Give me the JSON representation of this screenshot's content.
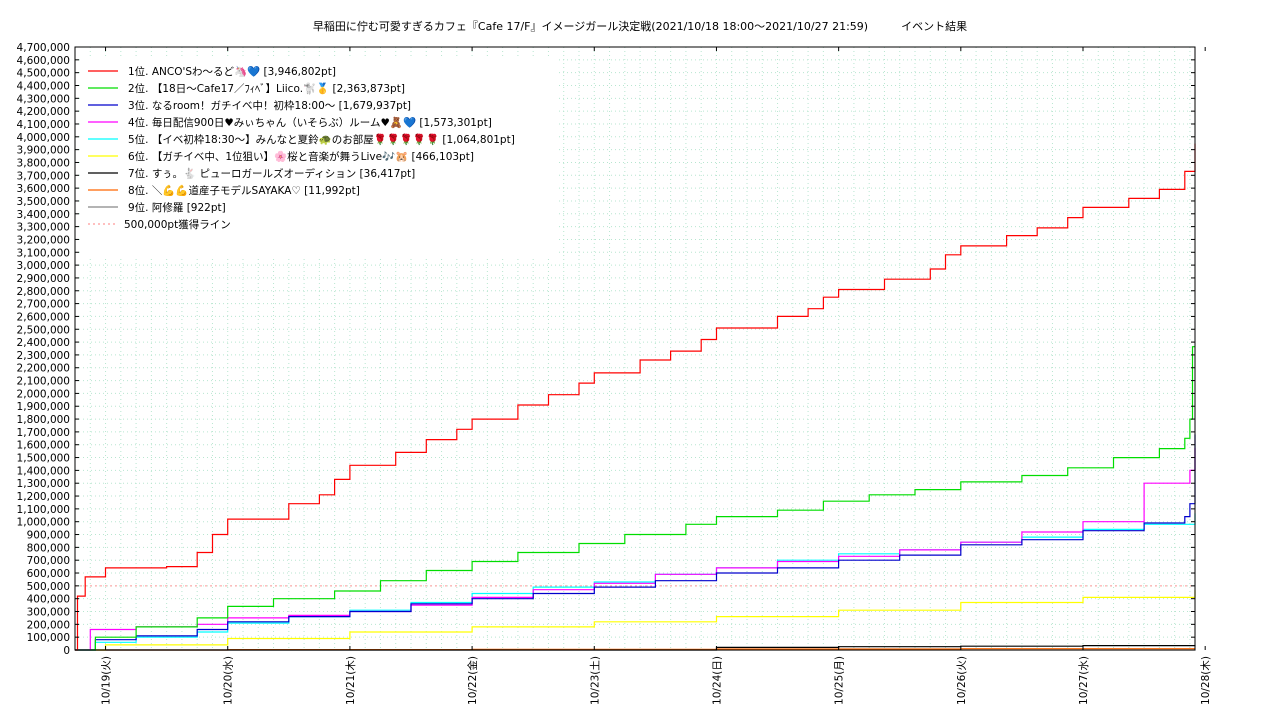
{
  "chart_data": {
    "type": "line",
    "title": "早稲田に佇む可愛すぎるカフェ『Cafe 17/F』イメージガール決定戦(2021/10/18 18:00～2021/10/27 21:59)　　　イベント結果",
    "xlabel": "",
    "ylabel": "",
    "ylim": [
      0,
      4700000
    ],
    "yticks": [
      "0",
      "100,000",
      "200,000",
      "300,000",
      "400,000",
      "500,000",
      "600,000",
      "700,000",
      "800,000",
      "900,000",
      "1,000,000",
      "1,100,000",
      "1,200,000",
      "1,300,000",
      "1,400,000",
      "1,500,000",
      "1,600,000",
      "1,700,000",
      "1,800,000",
      "1,900,000",
      "2,000,000",
      "2,100,000",
      "2,200,000",
      "2,300,000",
      "2,400,000",
      "2,500,000",
      "2,600,000",
      "2,700,000",
      "2,800,000",
      "2,900,000",
      "3,000,000",
      "3,100,000",
      "3,200,000",
      "3,300,000",
      "3,400,000",
      "3,500,000",
      "3,600,000",
      "3,700,000",
      "3,800,000",
      "3,900,000",
      "4,000,000",
      "4,100,000",
      "4,200,000",
      "4,300,000",
      "4,400,000",
      "4,500,000",
      "4,600,000",
      "4,700,000"
    ],
    "xlim": [
      "2021-10-18 18:00",
      "2021-10-27 22:00"
    ],
    "xticks": [
      {
        "at": "2021-10-19 00:00",
        "label": "10/19(火)"
      },
      {
        "at": "2021-10-20 00:00",
        "label": "10/20(水)"
      },
      {
        "at": "2021-10-21 00:00",
        "label": "10/21(木)"
      },
      {
        "at": "2021-10-22 00:00",
        "label": "10/22(金)"
      },
      {
        "at": "2021-10-23 00:00",
        "label": "10/23(土)"
      },
      {
        "at": "2021-10-24 00:00",
        "label": "10/24(日)"
      },
      {
        "at": "2021-10-25 00:00",
        "label": "10/25(月)"
      },
      {
        "at": "2021-10-26 00:00",
        "label": "10/26(火)"
      },
      {
        "at": "2021-10-27 00:00",
        "label": "10/27(水)"
      },
      {
        "at": "2021-10-28 00:00",
        "label": "10/28(木)"
      }
    ],
    "grid": true,
    "legend_position": "top-left",
    "series": [
      {
        "name": "1位. ANCO'Sわ〜るど🦄💙 [3,946,802pt]",
        "color": "#ff0000",
        "x": [
          "2021-10-18 18:00",
          "2021-10-18 18:30",
          "2021-10-18 20:00",
          "2021-10-19 00:00",
          "2021-10-19 12:00",
          "2021-10-19 18:00",
          "2021-10-19 21:00",
          "2021-10-20 00:00",
          "2021-10-20 12:00",
          "2021-10-20 18:00",
          "2021-10-20 21:00",
          "2021-10-21 00:00",
          "2021-10-21 09:00",
          "2021-10-21 15:00",
          "2021-10-21 21:00",
          "2021-10-22 00:00",
          "2021-10-22 09:00",
          "2021-10-22 15:00",
          "2021-10-22 21:00",
          "2021-10-23 00:00",
          "2021-10-23 09:00",
          "2021-10-23 15:00",
          "2021-10-23 21:00",
          "2021-10-24 00:00",
          "2021-10-24 12:00",
          "2021-10-24 18:00",
          "2021-10-24 21:00",
          "2021-10-25 00:00",
          "2021-10-25 09:00",
          "2021-10-25 18:00",
          "2021-10-25 21:00",
          "2021-10-26 00:00",
          "2021-10-26 09:00",
          "2021-10-26 15:00",
          "2021-10-26 21:00",
          "2021-10-27 00:00",
          "2021-10-27 09:00",
          "2021-10-27 15:00",
          "2021-10-27 20:00",
          "2021-10-27 22:00"
        ],
        "values": [
          0,
          420000,
          570000,
          640000,
          650000,
          760000,
          900000,
          1020000,
          1140000,
          1210000,
          1330000,
          1440000,
          1540000,
          1640000,
          1720000,
          1800000,
          1910000,
          1990000,
          2080000,
          2160000,
          2260000,
          2330000,
          2420000,
          2510000,
          2600000,
          2660000,
          2750000,
          2810000,
          2890000,
          2970000,
          3080000,
          3150000,
          3230000,
          3290000,
          3370000,
          3450000,
          3520000,
          3590000,
          3730000,
          3946802
        ]
      },
      {
        "name": "2位. 【18日〜Cafe17／ﾌｨﾍﾞ】Liico.🐩🥇 [2,363,873pt]",
        "color": "#00dd00",
        "x": [
          "2021-10-18 18:00",
          "2021-10-18 22:00",
          "2021-10-19 06:00",
          "2021-10-19 18:00",
          "2021-10-20 00:00",
          "2021-10-20 09:00",
          "2021-10-20 21:00",
          "2021-10-21 06:00",
          "2021-10-21 15:00",
          "2021-10-22 00:00",
          "2021-10-22 09:00",
          "2021-10-22 21:00",
          "2021-10-23 06:00",
          "2021-10-23 18:00",
          "2021-10-24 00:00",
          "2021-10-24 12:00",
          "2021-10-24 21:00",
          "2021-10-25 06:00",
          "2021-10-25 15:00",
          "2021-10-26 00:00",
          "2021-10-26 12:00",
          "2021-10-26 21:00",
          "2021-10-27 06:00",
          "2021-10-27 15:00",
          "2021-10-27 20:00",
          "2021-10-27 21:00",
          "2021-10-27 21:30",
          "2021-10-27 22:00"
        ],
        "values": [
          0,
          100000,
          180000,
          250000,
          340000,
          400000,
          460000,
          540000,
          620000,
          690000,
          760000,
          830000,
          900000,
          980000,
          1040000,
          1090000,
          1160000,
          1210000,
          1250000,
          1310000,
          1360000,
          1420000,
          1500000,
          1570000,
          1650000,
          1800000,
          2363873,
          2363873
        ]
      },
      {
        "name": "3位. なるroom！ガチイベ中！初枠18:00〜 [1,679,937pt]",
        "color": "#0000cc",
        "x": [
          "2021-10-18 18:00",
          "2021-10-18 22:00",
          "2021-10-19 06:00",
          "2021-10-19 18:00",
          "2021-10-20 00:00",
          "2021-10-20 12:00",
          "2021-10-21 00:00",
          "2021-10-21 12:00",
          "2021-10-22 00:00",
          "2021-10-22 12:00",
          "2021-10-23 00:00",
          "2021-10-23 12:00",
          "2021-10-24 00:00",
          "2021-10-24 12:00",
          "2021-10-25 00:00",
          "2021-10-25 12:00",
          "2021-10-26 00:00",
          "2021-10-26 12:00",
          "2021-10-27 00:00",
          "2021-10-27 12:00",
          "2021-10-27 20:00",
          "2021-10-27 21:00",
          "2021-10-27 22:00"
        ],
        "values": [
          0,
          80000,
          110000,
          160000,
          220000,
          260000,
          300000,
          360000,
          400000,
          440000,
          490000,
          540000,
          600000,
          640000,
          700000,
          740000,
          820000,
          860000,
          930000,
          990000,
          1040000,
          1140000,
          1679937
        ]
      },
      {
        "name": "4位. 毎日配信900日♥みぃちゃん（いそらぶ）ルーム♥🧸💙 [1,573,301pt]",
        "color": "#ff00ff",
        "x": [
          "2021-10-18 18:00",
          "2021-10-18 21:00",
          "2021-10-19 06:00",
          "2021-10-19 18:00",
          "2021-10-20 00:00",
          "2021-10-20 12:00",
          "2021-10-21 00:00",
          "2021-10-21 12:00",
          "2021-10-22 00:00",
          "2021-10-22 12:00",
          "2021-10-23 00:00",
          "2021-10-23 12:00",
          "2021-10-24 00:00",
          "2021-10-24 12:00",
          "2021-10-25 00:00",
          "2021-10-25 12:00",
          "2021-10-26 00:00",
          "2021-10-26 12:00",
          "2021-10-27 00:00",
          "2021-10-27 12:00",
          "2021-10-27 21:00",
          "2021-10-27 22:00"
        ],
        "values": [
          0,
          160000,
          180000,
          200000,
          250000,
          270000,
          300000,
          350000,
          410000,
          470000,
          520000,
          590000,
          640000,
          690000,
          730000,
          780000,
          840000,
          920000,
          1000000,
          1300000,
          1400000,
          1573301
        ]
      },
      {
        "name": "5位. 【イベ初枠18:30〜】みんなと夏鈴🐢のお部屋🌹🌹🌹🌹🌹 [1,064,801pt]",
        "color": "#00ffff",
        "x": [
          "2021-10-18 18:00",
          "2021-10-18 22:00",
          "2021-10-19 06:00",
          "2021-10-19 18:00",
          "2021-10-20 00:00",
          "2021-10-20 12:00",
          "2021-10-21 00:00",
          "2021-10-21 12:00",
          "2021-10-22 00:00",
          "2021-10-22 12:00",
          "2021-10-23 00:00",
          "2021-10-23 12:00",
          "2021-10-24 00:00",
          "2021-10-24 12:00",
          "2021-10-25 00:00",
          "2021-10-25 12:00",
          "2021-10-26 00:00",
          "2021-10-26 12:00",
          "2021-10-27 00:00",
          "2021-10-27 12:00",
          "2021-10-27 22:00"
        ],
        "values": [
          0,
          60000,
          100000,
          140000,
          210000,
          260000,
          310000,
          370000,
          440000,
          490000,
          530000,
          590000,
          640000,
          700000,
          750000,
          780000,
          840000,
          880000,
          940000,
          980000,
          1064801
        ]
      },
      {
        "name": "6位. 【ガチイベ中、1位狙い】🌸桜と音楽が舞うLive🎶🐹 [466,103pt]",
        "color": "#ffff00",
        "x": [
          "2021-10-18 18:00",
          "2021-10-19 00:00",
          "2021-10-20 00:00",
          "2021-10-21 00:00",
          "2021-10-22 00:00",
          "2021-10-23 00:00",
          "2021-10-24 00:00",
          "2021-10-25 00:00",
          "2021-10-26 00:00",
          "2021-10-27 00:00",
          "2021-10-27 22:00"
        ],
        "values": [
          0,
          40000,
          90000,
          140000,
          180000,
          220000,
          260000,
          310000,
          370000,
          410000,
          466103
        ]
      },
      {
        "name": "7位. すぅ。🐇 ピューロガールズオーディション [36,417pt]",
        "color": "#000000",
        "x": [
          "2021-10-18 18:00",
          "2021-10-23 18:00",
          "2021-10-24 00:00",
          "2021-10-25 00:00",
          "2021-10-26 00:00",
          "2021-10-27 00:00",
          "2021-10-27 22:00"
        ],
        "values": [
          0,
          0,
          20000,
          26000,
          30000,
          34000,
          36417
        ]
      },
      {
        "name": "8位. ＼💪💪道産子モデルSAYAKA♡ [11,992pt]",
        "color": "#ff6600",
        "x": [
          "2021-10-18 18:00",
          "2021-10-20 00:00",
          "2021-10-22 00:00",
          "2021-10-24 00:00",
          "2021-10-26 00:00",
          "2021-10-27 22:00"
        ],
        "values": [
          0,
          3000,
          5000,
          8000,
          10000,
          11992
        ]
      },
      {
        "name": "9位. 阿修羅 [922pt]",
        "color": "#888888",
        "x": [
          "2021-10-18 18:00",
          "2021-10-27 22:00"
        ],
        "values": [
          0,
          922
        ]
      }
    ],
    "reference_line": {
      "name": "500,000pt獲得ライン",
      "value": 500000,
      "color": "#ff9999",
      "style": "dotted"
    }
  }
}
